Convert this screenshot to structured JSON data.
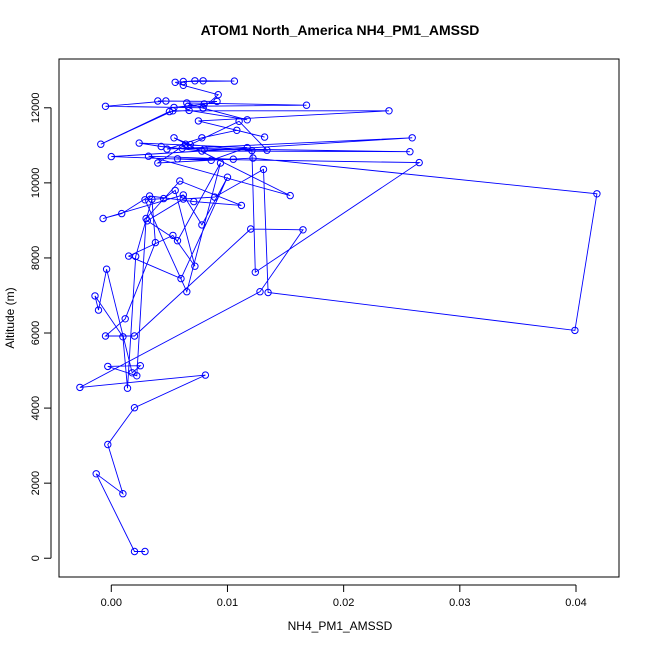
{
  "chart_data": {
    "type": "line",
    "title": "ATOM1 North_America NH4_PM1_AMSSD",
    "xlabel": "NH4_PM1_AMSSD",
    "ylabel": "Altitude (m)",
    "xlim": [
      -0.0045,
      0.0437
    ],
    "ylim": [
      -500,
      13300
    ],
    "x_ticks": [
      0.0,
      0.01,
      0.02,
      0.03,
      0.04
    ],
    "x_tick_labels": [
      "0.00",
      "0.01",
      "0.02",
      "0.03",
      "0.04"
    ],
    "y_ticks": [
      0,
      2000,
      4000,
      6000,
      8000,
      10000,
      12000
    ],
    "y_tick_labels": [
      "0",
      "2000",
      "4000",
      "6000",
      "8000",
      "10000",
      "12000"
    ],
    "grid": false,
    "series": [
      {
        "color": "#0000ff",
        "points": [
          [
            0.0029,
            180
          ],
          [
            0.002,
            180
          ],
          [
            -0.0013,
            2250
          ],
          [
            0.001,
            1720
          ],
          [
            -0.0003,
            3030
          ],
          [
            0.002,
            4010
          ],
          [
            0.0081,
            4880
          ],
          [
            -0.0027,
            4550
          ],
          [
            0.0128,
            7100
          ],
          [
            0.0165,
            8750
          ],
          [
            0.012,
            8770
          ],
          [
            0.002,
            5920
          ],
          [
            -0.0005,
            5920
          ],
          [
            0.0012,
            6380
          ],
          [
            0.0038,
            8410
          ],
          [
            0.0035,
            9560
          ],
          [
            0.0021,
            8040
          ],
          [
            0.0014,
            4530
          ],
          [
            0.001,
            5900
          ],
          [
            -0.0014,
            6990
          ],
          [
            -0.0011,
            6610
          ],
          [
            -0.0004,
            7700
          ],
          [
            0.0018,
            4940
          ],
          [
            0.0025,
            5130
          ],
          [
            -0.0003,
            5110
          ],
          [
            0.0022,
            4860
          ],
          [
            0.003,
            9050
          ],
          [
            0.0059,
            10050
          ],
          [
            0.0112,
            9400
          ],
          [
            0.0071,
            9500
          ],
          [
            0.0033,
            9650
          ],
          [
            0.0009,
            9180
          ],
          [
            -0.0007,
            9050
          ],
          [
            0.0062,
            9680
          ],
          [
            0.0078,
            8880
          ],
          [
            0.01,
            10150
          ],
          [
            0.006,
            7450
          ],
          [
            0.0015,
            8050
          ],
          [
            0.0053,
            8600
          ],
          [
            0.0072,
            7780
          ],
          [
            0.0055,
            9800
          ],
          [
            0.0045,
            9580
          ],
          [
            0.0029,
            9550
          ],
          [
            0.0065,
            7100
          ],
          [
            0.0094,
            10530
          ],
          [
            0.0057,
            8460
          ],
          [
            0.0031,
            8990
          ],
          [
            0.0062,
            9570
          ],
          [
            0.0089,
            9620
          ],
          [
            0.0131,
            10360
          ],
          [
            0.0135,
            7080
          ],
          [
            0.0399,
            6070
          ],
          [
            0.0418,
            9710
          ],
          [
            0.0122,
            10660
          ],
          [
            0.004,
            10530
          ],
          [
            0.0064,
            11030
          ],
          [
            0.0121,
            10860
          ],
          [
            0.0124,
            7620
          ],
          [
            0.0265,
            10540
          ],
          [
            0.0057,
            10640
          ],
          [
            0.0105,
            10630
          ],
          [
            0.0032,
            10710
          ],
          [
            0.0154,
            9660
          ],
          [
            0.0054,
            11200
          ],
          [
            0.0068,
            11020
          ],
          [
            0.011,
            11640
          ],
          [
            0.0134,
            10870
          ],
          [
            0.008,
            10900
          ],
          [
            0.0061,
            10920
          ],
          [
            0.0257,
            10830
          ],
          [
            0.0078,
            10850
          ],
          [
            0.0043,
            10970
          ],
          [
            0.0024,
            11060
          ],
          [
            0.0117,
            10940
          ],
          [
            0.0086,
            10600
          ],
          [
            0.0,
            10700
          ],
          [
            0.0259,
            11200
          ],
          [
            0.0048,
            10900
          ],
          [
            0.0078,
            11200
          ],
          [
            0.0108,
            11400
          ],
          [
            0.0132,
            11220
          ],
          [
            0.0075,
            11650
          ],
          [
            0.0239,
            11920
          ],
          [
            0.0053,
            11920
          ],
          [
            -0.0009,
            11030
          ],
          [
            0.005,
            11900
          ],
          [
            0.0067,
            11930
          ],
          [
            0.0117,
            11680
          ],
          [
            0.0079,
            11990
          ],
          [
            0.0065,
            12130
          ],
          [
            0.0168,
            12070
          ],
          [
            0.0066,
            12040
          ],
          [
            0.0054,
            12010
          ],
          [
            0.008,
            12100
          ],
          [
            0.0091,
            12170
          ],
          [
            0.004,
            12180
          ],
          [
            0.0047,
            12180
          ],
          [
            -0.0005,
            12040
          ],
          [
            0.0079,
            12000
          ],
          [
            0.0092,
            12350
          ],
          [
            0.0062,
            12600
          ],
          [
            0.0055,
            12680
          ],
          [
            0.0072,
            12720
          ],
          [
            0.0079,
            12720
          ],
          [
            0.0106,
            12710
          ],
          [
            0.0062,
            12700
          ]
        ]
      }
    ]
  }
}
